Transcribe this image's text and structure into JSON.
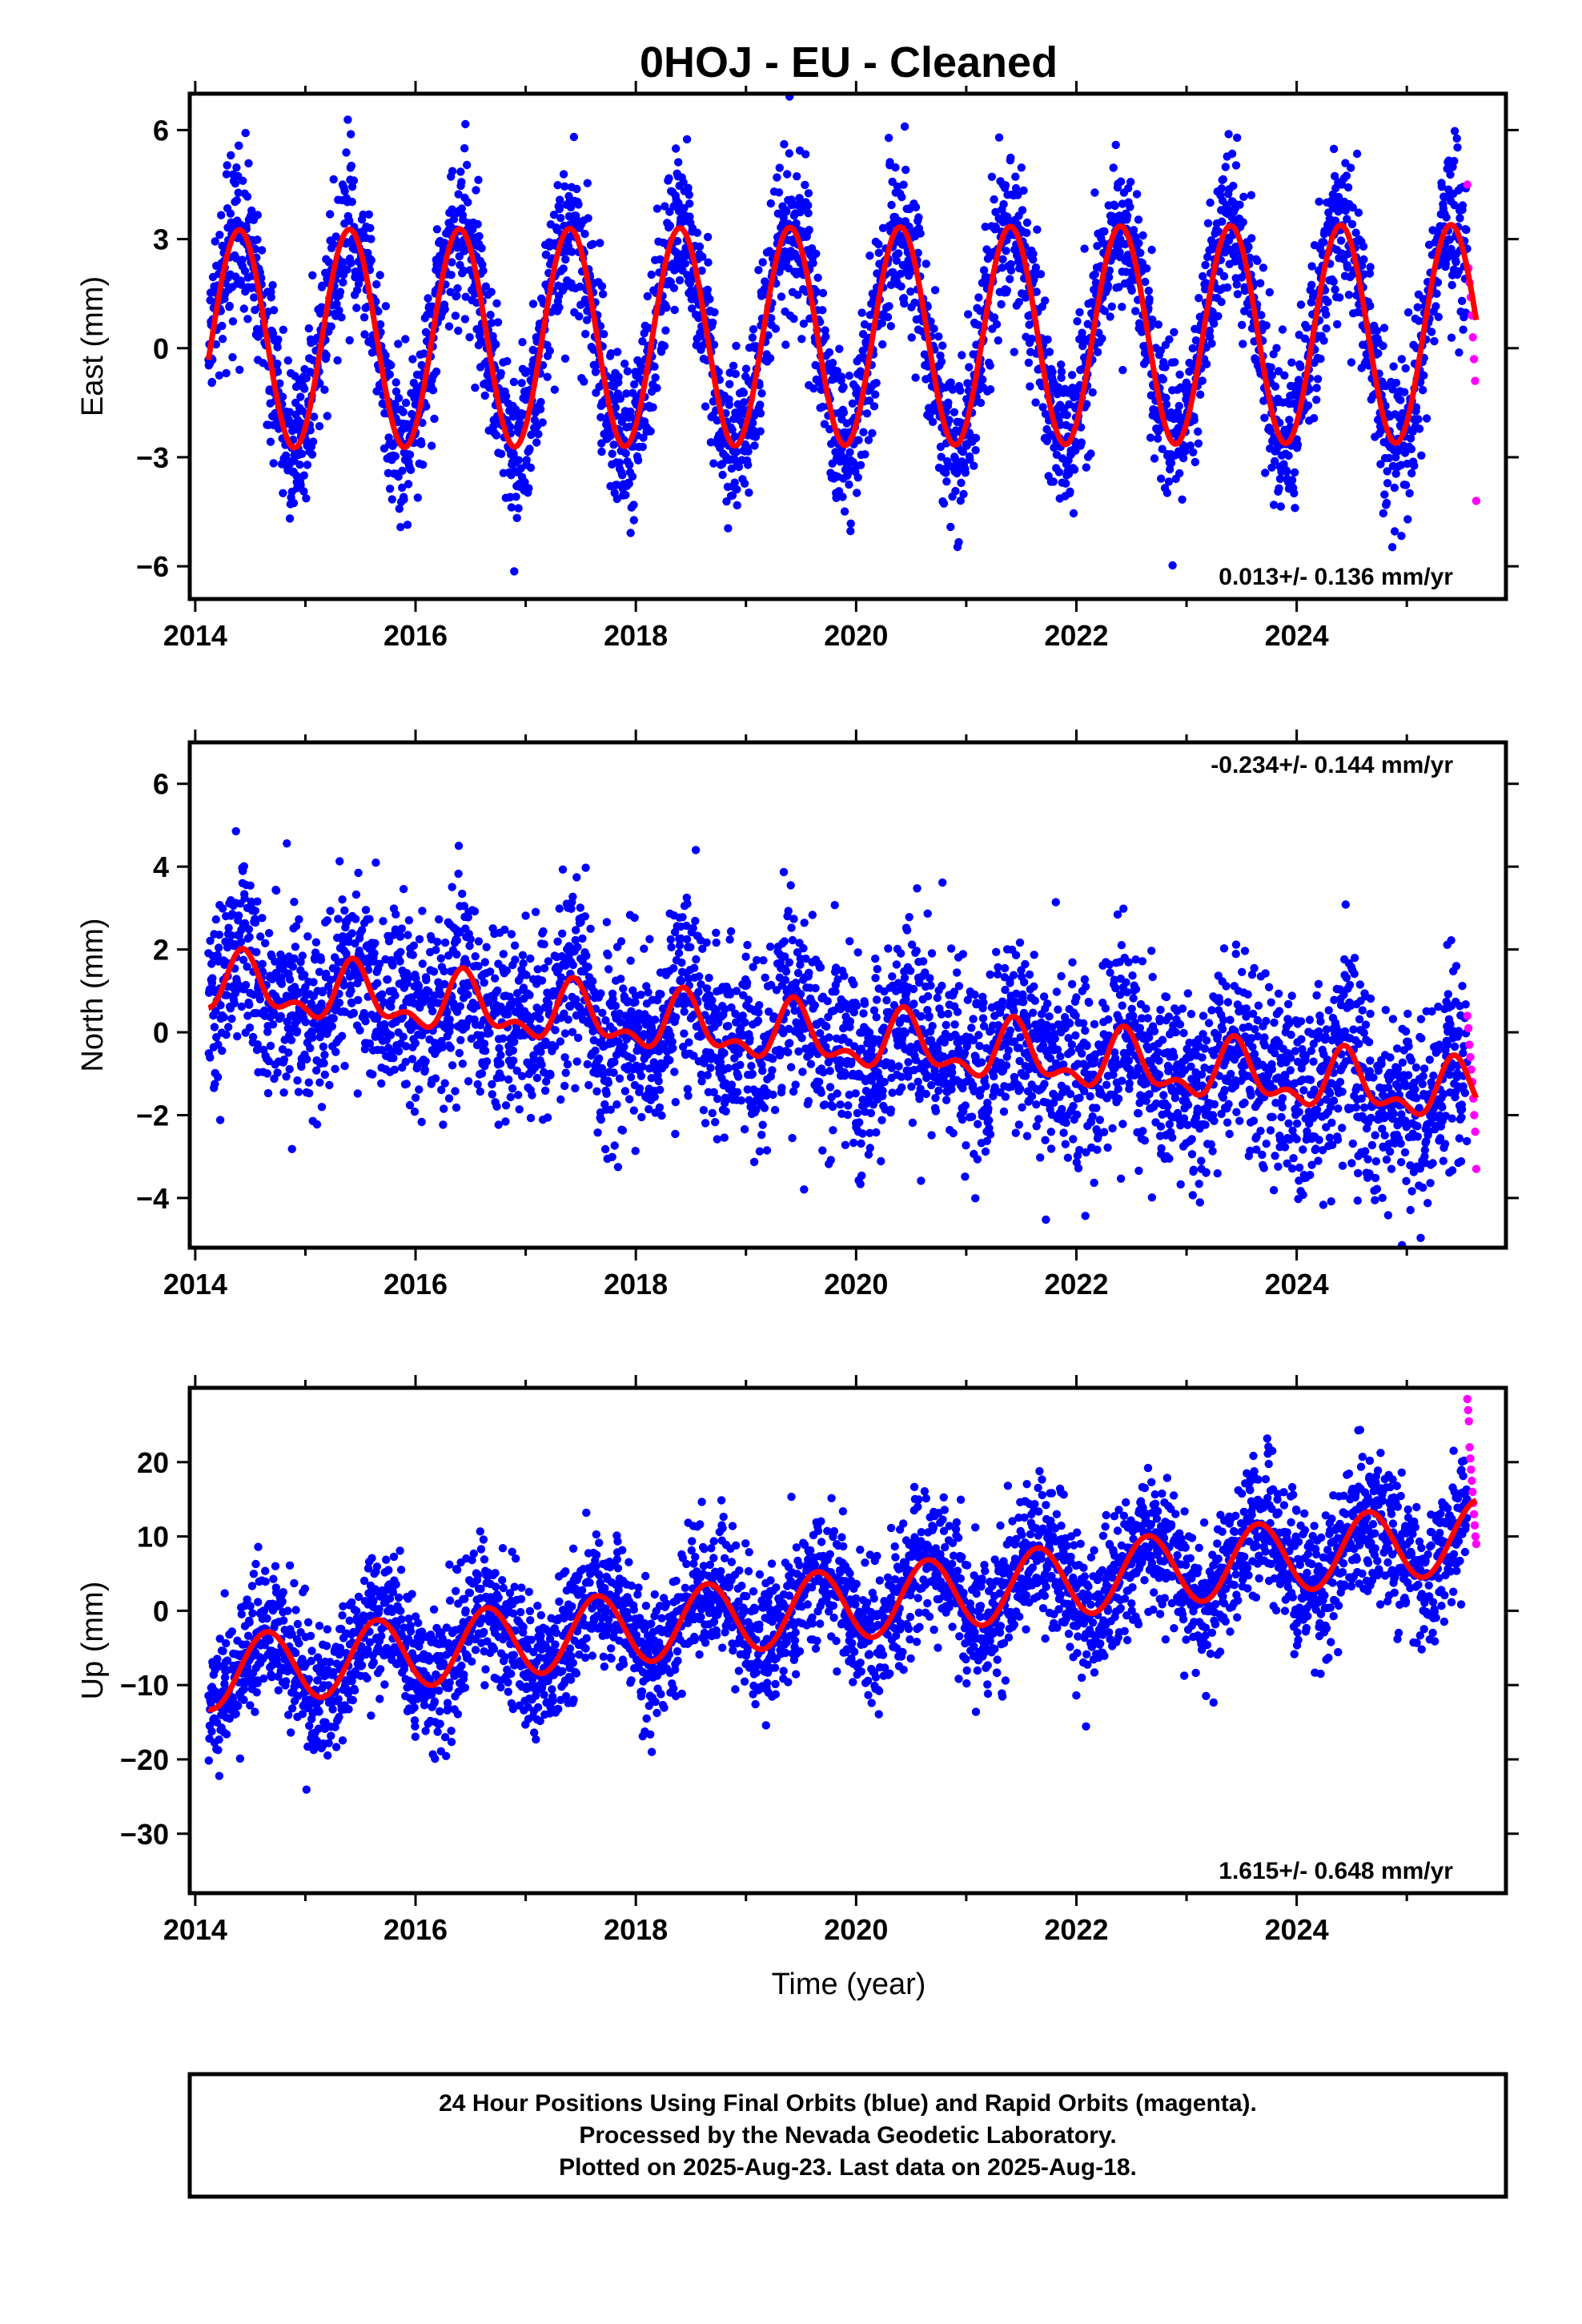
{
  "title": "0HOJ  - EU - Cleaned",
  "xlabel": "Time (year)",
  "footer": {
    "line1": "24 Hour Positions Using Final Orbits (blue) and Rapid Orbits (magenta).",
    "line2": "Processed by the Nevada Geodetic Laboratory.",
    "line3": "Plotted on 2025-Aug-23. Last data on 2025-Aug-18."
  },
  "colors": {
    "final": "#0000ff",
    "rapid": "#ff00ff",
    "model": "#ff0000",
    "frame": "#000000"
  },
  "chart_data": [
    {
      "type": "scatter",
      "ylabel": "East (mm)",
      "xlim": [
        2013.95,
        2025.9
      ],
      "ylim": [
        -6.9,
        7.0
      ],
      "xticks": [
        2014,
        2016,
        2018,
        2020,
        2022,
        2024
      ],
      "yticks": [
        -6,
        -3,
        0,
        3,
        6
      ],
      "rate_label": "0.013+/- 0.136 mm/yr",
      "rate_position": "bottom-right",
      "data_span": [
        2014.12,
        2025.55
      ],
      "rapid_span": [
        2025.55,
        2025.63
      ],
      "model": {
        "trend_start": 0.25,
        "trend_rate": 0.013,
        "annual_amp": 3.0,
        "annual_phase": 2014.15,
        "semi_amp": 0.0,
        "semi_phase": 0.0
      },
      "scatter_sd": 1.1,
      "rapid_values": [
        4.5,
        2.2,
        1.8,
        1.4,
        0.9,
        0.3,
        -0.3,
        -0.9,
        -4.2
      ],
      "series": [
        {
          "name": "Final Orbits (blue)",
          "color": "#0000ff"
        },
        {
          "name": "Rapid Orbits (magenta)",
          "color": "#ff00ff"
        },
        {
          "name": "Model",
          "color": "#ff0000"
        }
      ]
    },
    {
      "type": "scatter",
      "ylabel": "North (mm)",
      "xlim": [
        2013.95,
        2025.9
      ],
      "ylim": [
        -5.2,
        7.0
      ],
      "xticks": [
        2014,
        2016,
        2018,
        2020,
        2022,
        2024
      ],
      "yticks": [
        -4,
        -2,
        0,
        2,
        4,
        6
      ],
      "rate_label": "-0.234+/- 0.144 mm/yr",
      "rate_position": "top-right",
      "data_span": [
        2014.12,
        2025.55
      ],
      "rapid_span": [
        2025.55,
        2025.63
      ],
      "model": {
        "trend_start": 1.15,
        "trend_rate": -0.234,
        "annual_amp": 0.6,
        "annual_phase": 2014.2,
        "semi_amp": 0.35,
        "semi_phase": 2014.3
      },
      "scatter_sd": 1.15,
      "rapid_values": [
        0.4,
        0.1,
        -0.3,
        -0.6,
        -0.9,
        -1.2,
        -1.6,
        -2.0,
        -2.4,
        -3.3
      ],
      "series": [
        {
          "name": "Final Orbits (blue)",
          "color": "#0000ff"
        },
        {
          "name": "Rapid Orbits (magenta)",
          "color": "#ff00ff"
        },
        {
          "name": "Model",
          "color": "#ff0000"
        }
      ]
    },
    {
      "type": "scatter",
      "ylabel": "Up (mm)",
      "xlim": [
        2013.95,
        2025.9
      ],
      "ylim": [
        -38.0,
        30.0
      ],
      "xticks": [
        2014,
        2016,
        2018,
        2020,
        2022,
        2024
      ],
      "yticks": [
        -30,
        -20,
        -10,
        0,
        10,
        20
      ],
      "rate_label": "1.615+/- 0.648 mm/yr",
      "rate_position": "bottom-right",
      "data_span": [
        2014.12,
        2025.55
      ],
      "rapid_span": [
        2025.55,
        2025.63
      ],
      "model": {
        "trend_start": -8.5,
        "trend_rate": 1.615,
        "annual_amp": 4.8,
        "annual_phase": 2014.4,
        "semi_amp": 0.0,
        "semi_phase": 0.0
      },
      "scatter_sd": 4.6,
      "rapid_values": [
        28.5,
        27.0,
        25.5,
        22.0,
        20.5,
        19.0,
        17.5,
        16.0,
        14.5,
        13.0,
        11.5,
        10.0,
        9.0
      ],
      "series": [
        {
          "name": "Final Orbits (blue)",
          "color": "#0000ff"
        },
        {
          "name": "Rapid Orbits (magenta)",
          "color": "#ff00ff"
        },
        {
          "name": "Model",
          "color": "#ff0000"
        }
      ]
    }
  ]
}
